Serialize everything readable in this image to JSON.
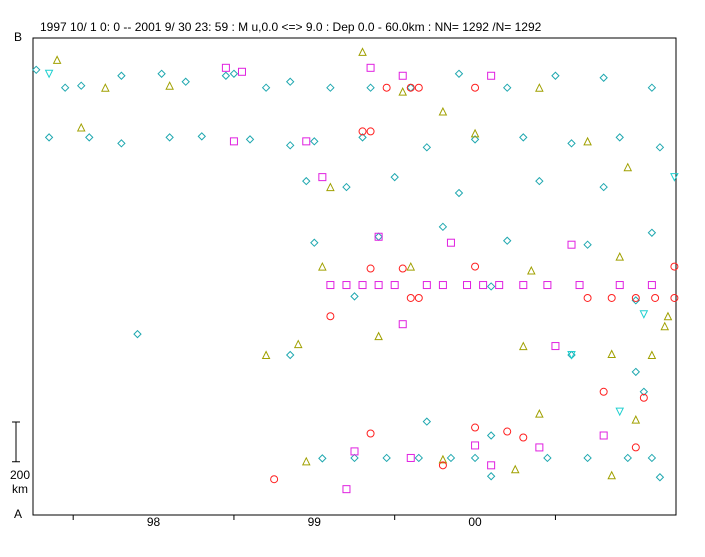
{
  "chart_data": {
    "type": "scatter",
    "title": "1997 10/ 1  0: 0 --  2001  9/ 30  23: 59  : M u,0.0 <=> 9.0   :  Dep 0.0 - 60.0km :  NN= 1292 /N= 1292",
    "xlim": [
      1997.75,
      2001.75
    ],
    "xticks": [
      {
        "value": 1998.5,
        "label": "98"
      },
      {
        "value": 1999.5,
        "label": "99"
      },
      {
        "value": 2000.5,
        "label": "00"
      }
    ],
    "xtick_marks": [
      1998,
      1999,
      2000,
      2001
    ],
    "ylim": [
      0,
      2400
    ],
    "yticks": [
      {
        "value": 0,
        "label": "A"
      },
      {
        "value": 2400,
        "label": "B"
      }
    ],
    "scale_bar": {
      "value": 200,
      "unit": "km"
    },
    "series": [
      {
        "marker": "diamond",
        "color": "#20a8b0",
        "x": [
          1997.77,
          1997.95,
          1998.05,
          1998.3,
          1998.55,
          1998.7,
          1998.95,
          1999.0,
          1999.2,
          1999.35,
          1999.6,
          1999.85,
          2000.1,
          2000.4,
          2000.7,
          2001.0,
          2001.3,
          2001.6,
          1997.85,
          1998.1,
          1998.3,
          1998.6,
          1998.8,
          1999.1,
          1999.35,
          1999.5,
          1999.8,
          2000.2,
          2000.5,
          2000.8,
          2001.1,
          2001.4,
          2001.65,
          1999.45,
          1999.7,
          2000.0,
          2000.4,
          2000.9,
          2001.3,
          1999.5,
          1999.9,
          2000.3,
          2000.7,
          2001.2,
          2001.6,
          1999.75,
          2000.6,
          2001.5,
          1998.4,
          1999.35,
          2001.1,
          2001.5,
          2001.55,
          2000.2,
          2000.6,
          1999.55,
          1999.75,
          1999.95,
          2000.15,
          2000.35,
          2000.5,
          2000.95,
          2001.2,
          2001.45,
          2001.6,
          2001.65,
          2000.6
        ],
        "values": [
          2240,
          2150,
          2160,
          2210,
          2220,
          2180,
          2210,
          2220,
          2150,
          2180,
          2150,
          2150,
          2150,
          2220,
          2150,
          2210,
          2200,
          2150,
          1900,
          1900,
          1870,
          1900,
          1905,
          1890,
          1860,
          1880,
          1900,
          1850,
          1890,
          1900,
          1870,
          1900,
          1850,
          1680,
          1650,
          1700,
          1620,
          1680,
          1650,
          1370,
          1400,
          1450,
          1380,
          1360,
          1420,
          1100,
          1150,
          1080,
          910,
          805,
          805,
          720,
          620,
          470,
          400,
          285,
          287,
          287,
          287,
          287,
          287,
          287,
          287,
          287,
          287,
          190,
          195
        ]
      },
      {
        "marker": "triangle",
        "color": "#a0a000",
        "x": [
          1997.9,
          1998.2,
          1998.6,
          1999.8,
          2000.05,
          2000.3,
          2000.9,
          1998.05,
          1999.6,
          2000.5,
          2001.2,
          2001.45,
          1999.55,
          2000.1,
          2000.85,
          2001.4,
          1999.2,
          1999.4,
          1999.9,
          2000.8,
          2001.35,
          2001.6,
          2001.68,
          2001.7,
          2000.9,
          2001.5,
          1999.45,
          2000.3,
          2001.35,
          2000.75
        ],
        "values": [
          2290,
          2150,
          2160,
          2330,
          2130,
          2030,
          2150,
          1950,
          1650,
          1920,
          1880,
          1750,
          1250,
          1250,
          1230,
          1300,
          805,
          860,
          900,
          850,
          810,
          805,
          950,
          1000,
          510,
          480,
          270,
          280,
          200,
          230
        ]
      },
      {
        "marker": "square",
        "color": "#e020e0",
        "x": [
          1998.95,
          1999.05,
          1999.85,
          2000.05,
          2000.6,
          1999.0,
          1999.45,
          1999.55,
          1999.9,
          2000.35,
          2001.1,
          1999.6,
          1999.7,
          1999.8,
          1999.9,
          2000.0,
          2000.2,
          2000.3,
          2000.45,
          2000.55,
          2000.65,
          2000.8,
          2000.95,
          2001.15,
          2001.4,
          2001.6,
          2000.05,
          2001.0,
          2000.5,
          1999.75,
          2000.1,
          2000.6,
          2000.9,
          1999.7,
          2001.3
        ],
        "values": [
          2250,
          2230,
          2250,
          2210,
          2210,
          1880,
          1880,
          1700,
          1400,
          1370,
          1360,
          1157,
          1157,
          1157,
          1157,
          1157,
          1157,
          1157,
          1157,
          1157,
          1157,
          1157,
          1157,
          1157,
          1157,
          1157,
          960,
          850,
          350,
          320,
          287,
          250,
          340,
          130,
          400
        ]
      },
      {
        "marker": "circle",
        "color": "#ff2020",
        "x": [
          1999.95,
          2000.1,
          2000.15,
          2000.5,
          1999.8,
          1999.85,
          1999.85,
          2000.05,
          2000.5,
          2000.1,
          2000.15,
          2001.2,
          2001.35,
          2001.5,
          2001.62,
          2001.74,
          2001.74,
          1999.6,
          2000.5,
          2000.7,
          1999.85,
          2001.3,
          2001.55,
          2000.3,
          1999.25,
          2000.8,
          2001.5
        ],
        "values": [
          2150,
          2150,
          2150,
          2150,
          1930,
          1930,
          1240,
          1240,
          1250,
          1092,
          1092,
          1092,
          1092,
          1092,
          1092,
          1092,
          1250,
          1000,
          440,
          420,
          410,
          620,
          590,
          250,
          180,
          390,
          340
        ]
      },
      {
        "marker": "triangle-down",
        "color": "#20d0d0",
        "x": [
          1997.85,
          2001.74,
          2001.55,
          2001.1,
          2001.4
        ],
        "values": [
          2220,
          1700,
          1010,
          805,
          520
        ]
      }
    ]
  }
}
